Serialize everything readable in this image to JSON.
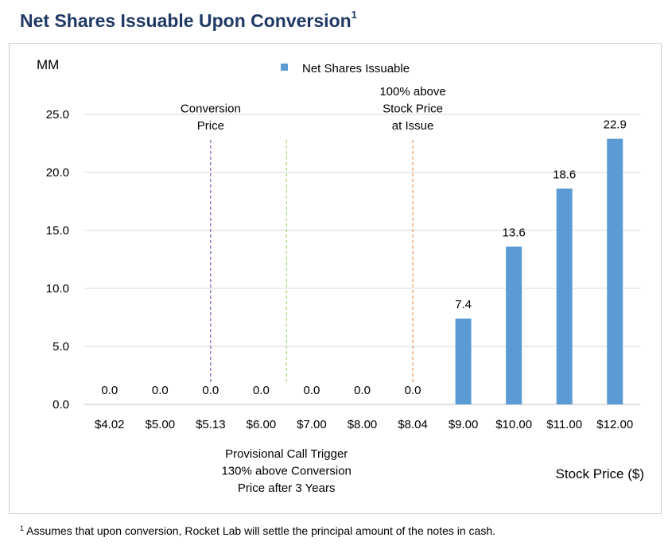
{
  "header": {
    "title": "Net Shares Issuable Upon Conversion",
    "title_superscript": "1"
  },
  "chart_data": {
    "type": "bar",
    "title": "Net Shares Issuable Upon Conversion",
    "ylabel": "MM",
    "xlabel": "Stock Price ($)",
    "ylim": [
      0,
      25
    ],
    "yticks": [
      "0.0",
      "5.0",
      "10.0",
      "15.0",
      "20.0",
      "25.0"
    ],
    "grid": true,
    "legend": {
      "position": "top-center",
      "entries": [
        "Net Shares Issuable"
      ]
    },
    "categories": [
      "$4.02",
      "$5.00",
      "$5.13",
      "$6.00",
      "$7.00",
      "$8.00",
      "$8.04",
      "$9.00",
      "$10.00",
      "$11.00",
      "$12.00"
    ],
    "series": [
      {
        "name": "Net Shares Issuable",
        "values": [
          0.0,
          0.0,
          0.0,
          0.0,
          0.0,
          0.0,
          0.0,
          7.4,
          13.6,
          18.6,
          22.9
        ],
        "labels": [
          "0.0",
          "0.0",
          "0.0",
          "0.0",
          "0.0",
          "0.0",
          "0.0",
          "7.4",
          "13.6",
          "18.6",
          "22.9"
        ],
        "color": "#5b9bd5"
      }
    ],
    "reference_lines": [
      {
        "x_category": "$5.13",
        "label": [
          "Conversion",
          "Price"
        ],
        "label_position": "top",
        "color": "#7030a0"
      },
      {
        "x_between": [
          "$6.00",
          "$7.00"
        ],
        "label": [
          "Provisional Call Trigger",
          "130% above Conversion",
          "Price after 3 Years"
        ],
        "label_position": "bottom",
        "color": "#92d050"
      },
      {
        "x_category": "$8.04",
        "label": [
          "100% above",
          "Stock Price",
          "at Issue"
        ],
        "label_position": "top",
        "color": "#ed7d31"
      }
    ]
  },
  "colors": {
    "title": "#1f3864",
    "bar": "#5b9bd5",
    "grid": "#d9d9d9"
  },
  "footnote": {
    "marker": "1",
    "text": "Assumes that upon conversion, Rocket Lab will settle the principal amount of the notes in cash."
  }
}
